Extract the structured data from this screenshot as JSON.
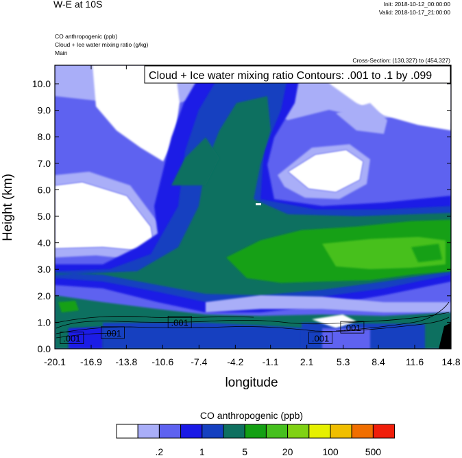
{
  "header": {
    "title": "W-E at 10S",
    "init": "Init: 2018-10-12_00:00:00",
    "valid": "Valid: 2018-10-17_21:00:00",
    "field1": "CO anthropogenic   (ppb)",
    "field2": "Cloud + Ice water mixing ratio   (g/kg)",
    "field3": "Main",
    "cross_section": "Cross-Section: (130,327) to (454,327)",
    "contour_info": "Cloud + Ice water mixing ratio Contours: .001 to .1 by .099"
  },
  "colors": {
    "scale": [
      "#ffffff",
      "#a9aef8",
      "#5e62f0",
      "#1a1ae6",
      "#1540c0",
      "#0f7060",
      "#14a014",
      "#46c01e",
      "#80d214",
      "#e6f000",
      "#f0be00",
      "#f06e00",
      "#f01e0a"
    ]
  },
  "chart_data": {
    "type": "heatmap",
    "xlabel": "longitude",
    "ylabel": "Height (km)",
    "xlim": [
      -20.1,
      14.8
    ],
    "ylim": [
      0.0,
      10.7
    ],
    "x_ticks": [
      "-20.1",
      "-16.9",
      "-13.8",
      "-10.6",
      "-7.4",
      "-4.2",
      "-1.1",
      "2.1",
      "5.3",
      "8.4",
      "11.6",
      "14.8"
    ],
    "y_ticks": [
      "0.0",
      "1.0",
      "2.0",
      "3.0",
      "4.0",
      "5.0",
      "6.0",
      "7.0",
      "8.0",
      "9.0",
      "10.0"
    ],
    "contour_labels": [
      {
        "text": ".001",
        "x": -18.6,
        "y": 0.4
      },
      {
        "text": ".001",
        "x": -15.0,
        "y": 0.6
      },
      {
        "text": ".001",
        "x": -9.1,
        "y": 1.0
      },
      {
        "text": ".001",
        "x": 3.3,
        "y": 0.4
      },
      {
        "text": ".001",
        "x": 6.1,
        "y": 0.8
      }
    ],
    "colorbar": {
      "title": "CO anthropogenic  (ppb)",
      "labels": [
        ".2",
        "1",
        "5",
        "20",
        "100",
        "500"
      ]
    }
  }
}
